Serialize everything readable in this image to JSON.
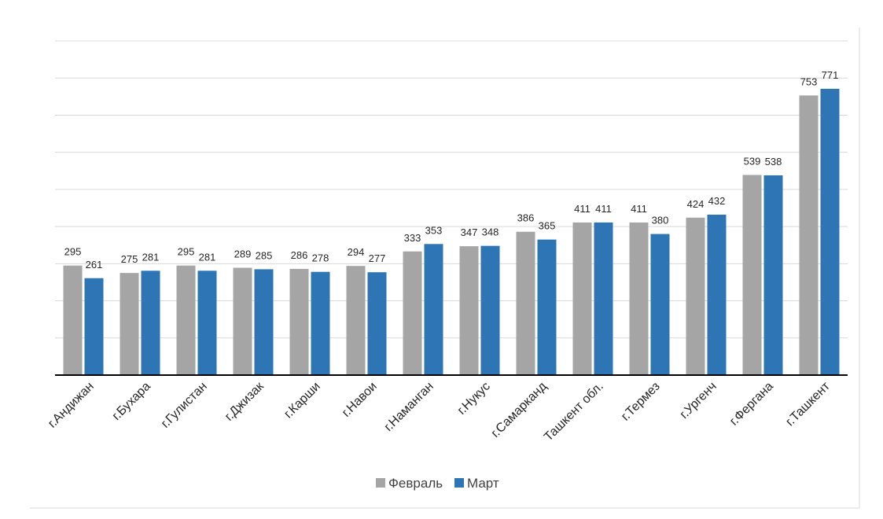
{
  "chart_data": {
    "type": "bar",
    "title": "",
    "xlabel": "",
    "ylabel": "",
    "ylim": [
      0,
      900
    ],
    "grid": true,
    "legend_position": "bottom",
    "categories": [
      "г.Андижан",
      "г.Бухара",
      "г.Гулистан",
      "г.Джизак",
      "г.Карши",
      "г.Навои",
      "г.Наманган",
      "г.Нукус",
      "г.Самарканд",
      "Ташкент обл.",
      "г.Термез",
      "г.Ургенч",
      "г.Фергана",
      "г.Ташкент"
    ],
    "series": [
      {
        "name": "Февраль",
        "color": "#a5a5a5",
        "values": [
          295,
          275,
          295,
          289,
          286,
          294,
          333,
          347,
          386,
          411,
          411,
          424,
          539,
          753
        ]
      },
      {
        "name": "Март",
        "color": "#2e75b6",
        "values": [
          261,
          281,
          281,
          285,
          278,
          277,
          353,
          348,
          365,
          411,
          380,
          432,
          538,
          771
        ]
      }
    ]
  }
}
